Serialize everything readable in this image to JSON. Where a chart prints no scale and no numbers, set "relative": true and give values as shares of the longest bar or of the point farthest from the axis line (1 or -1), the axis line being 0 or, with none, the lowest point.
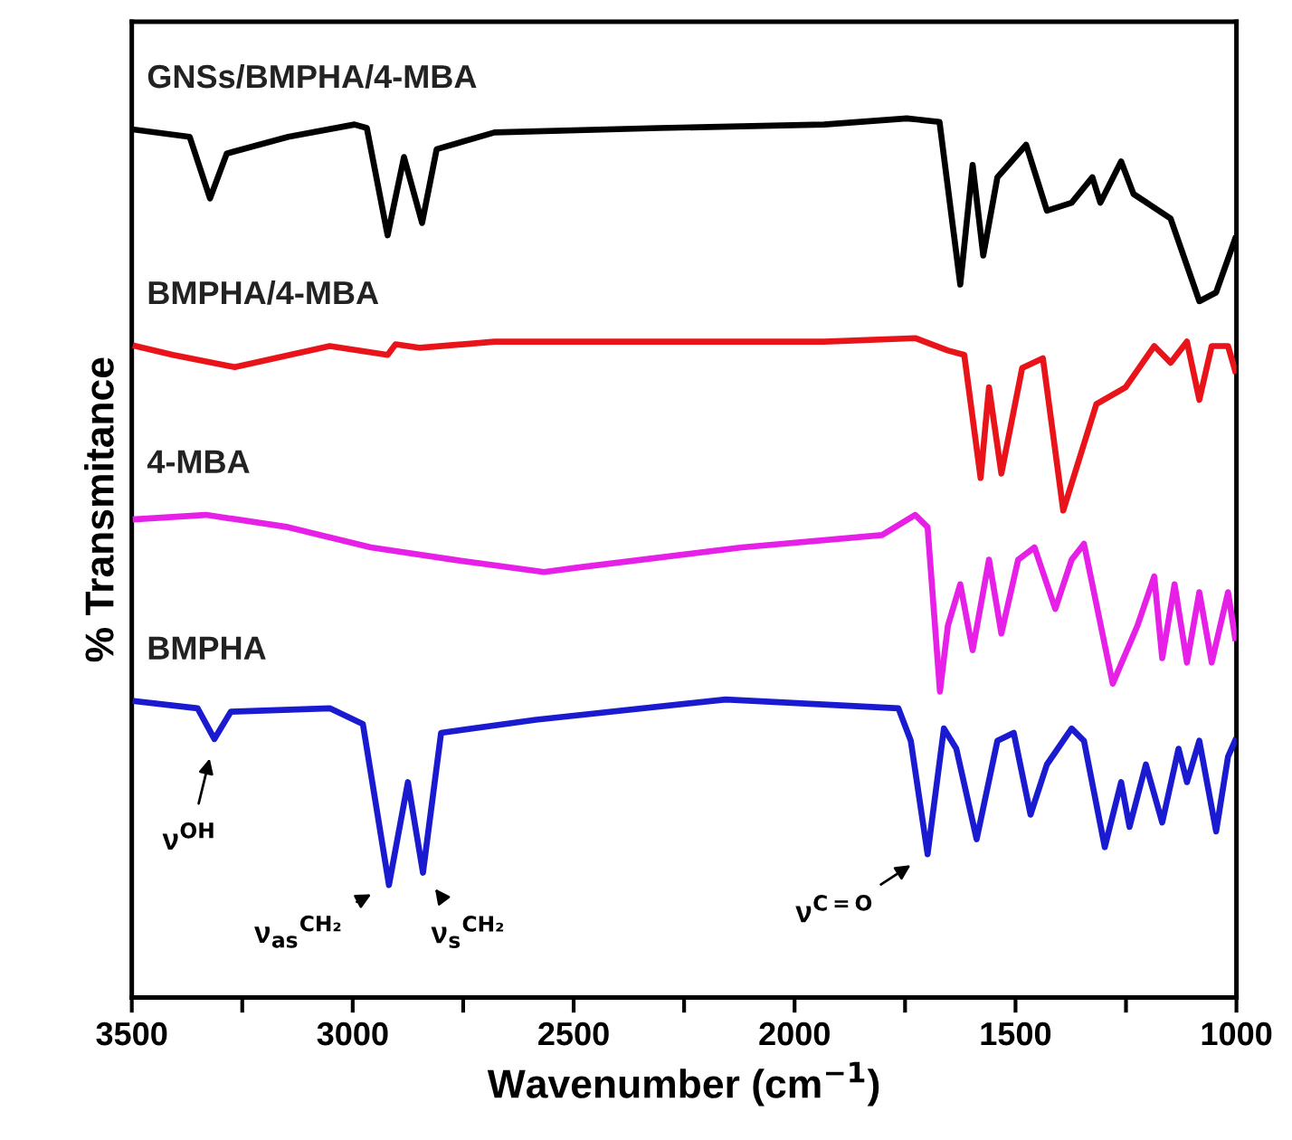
{
  "chart_data": {
    "type": "line",
    "relative": true,
    "xlabel": "Wavenumber (cm$^{−1}$)",
    "ylabel": "% Transmitance",
    "xlim": [
      3500,
      1000
    ],
    "xticks": [
      3500,
      {
        "value": 3250,
        "label": null
      },
      3000,
      {
        "value": 2750,
        "label": null
      },
      2500,
      {
        "value": 2250,
        "label": null
      },
      2000,
      {
        "value": 1750,
        "label": null
      },
      1500,
      {
        "value": 1250,
        "label": null
      },
      1000
    ],
    "tick_labels": "x",
    "grid": false,
    "legend": false,
    "marker": "none",
    "line_style": "solid",
    "series": [
      {
        "name": "GNSs/BMPHA/4-MBA",
        "color": "#000000",
        "x": [
          3491,
          3369,
          3323,
          3285,
          3146,
          2996,
          2968,
          2921,
          2884,
          2843,
          2810,
          2679,
          2306,
          1933,
          1746,
          1672,
          1625,
          1597,
          1573,
          1541,
          1476,
          1429,
          1373,
          1326,
          1308,
          1261,
          1233,
          1149,
          1084,
          1046,
          1003
        ],
        "values": [
          0.987,
          0.979,
          0.909,
          0.96,
          0.979,
          0.993,
          0.989,
          0.867,
          0.956,
          0.881,
          0.965,
          0.984,
          0.989,
          0.993,
          1.0,
          0.996,
          0.811,
          0.947,
          0.844,
          0.933,
          0.97,
          0.895,
          0.904,
          0.933,
          0.904,
          0.951,
          0.914,
          0.886,
          0.792,
          0.802,
          0.863
        ]
      },
      {
        "name": "BMPHA/4-MBA",
        "color": "#e8141a",
        "x": [
          3491,
          3407,
          3267,
          3052,
          2921,
          2903,
          2847,
          2679,
          1933,
          1727,
          1653,
          1616,
          1579,
          1560,
          1532,
          1485,
          1438,
          1392,
          1317,
          1251,
          1186,
          1149,
          1112,
          1084,
          1056,
          1019,
          1003
        ],
        "values": [
          0.741,
          0.731,
          0.717,
          0.741,
          0.731,
          0.743,
          0.739,
          0.746,
          0.746,
          0.75,
          0.736,
          0.731,
          0.591,
          0.694,
          0.596,
          0.716,
          0.727,
          0.554,
          0.675,
          0.694,
          0.741,
          0.722,
          0.746,
          0.68,
          0.741,
          0.741,
          0.713
        ]
      },
      {
        "name": "4-MBA",
        "color": "#e620e6",
        "x": [
          3491,
          3332,
          3146,
          2959,
          2772,
          2567,
          2492,
          2119,
          1802,
          1727,
          1699,
          1671,
          1653,
          1625,
          1597,
          1560,
          1532,
          1494,
          1457,
          1410,
          1373,
          1345,
          1280,
          1224,
          1186,
          1168,
          1140,
          1112,
          1084,
          1056,
          1019,
          1003
        ],
        "values": [
          0.544,
          0.549,
          0.535,
          0.512,
          0.498,
          0.484,
          0.489,
          0.512,
          0.526,
          0.549,
          0.535,
          0.348,
          0.423,
          0.47,
          0.395,
          0.498,
          0.414,
          0.498,
          0.512,
          0.442,
          0.498,
          0.516,
          0.357,
          0.423,
          0.479,
          0.386,
          0.47,
          0.381,
          0.461,
          0.381,
          0.461,
          0.409
        ]
      },
      {
        "name": "BMPHA",
        "color": "#1a1ad0",
        "x": [
          3491,
          3351,
          3313,
          3276,
          3052,
          2977,
          2918,
          2875,
          2841,
          2800,
          2585,
          2156,
          1765,
          1737,
          1699,
          1662,
          1634,
          1588,
          1541,
          1504,
          1466,
          1429,
          1373,
          1345,
          1298,
          1261,
          1242,
          1205,
          1168,
          1131,
          1112,
          1084,
          1046,
          1019,
          1003
        ],
        "values": [
          0.337,
          0.329,
          0.294,
          0.325,
          0.329,
          0.311,
          0.128,
          0.245,
          0.142,
          0.301,
          0.316,
          0.339,
          0.329,
          0.292,
          0.163,
          0.306,
          0.283,
          0.18,
          0.292,
          0.301,
          0.208,
          0.265,
          0.306,
          0.292,
          0.171,
          0.245,
          0.194,
          0.265,
          0.199,
          0.283,
          0.245,
          0.292,
          0.189,
          0.274,
          0.292
        ]
      }
    ],
    "annotations": [
      {
        "text": "ν$^{OH}$",
        "x": 3313,
        "y": 0.294
      },
      {
        "text": "ν$_{as}$$^{CH₂}$",
        "x": 2918,
        "y": 0.128
      },
      {
        "text": "ν$_{s}$$^{CH₂}$",
        "x": 2841,
        "y": 0.142
      },
      {
        "text": "ν$^{C=O}$",
        "x": 1699,
        "y": 0.163
      }
    ]
  }
}
